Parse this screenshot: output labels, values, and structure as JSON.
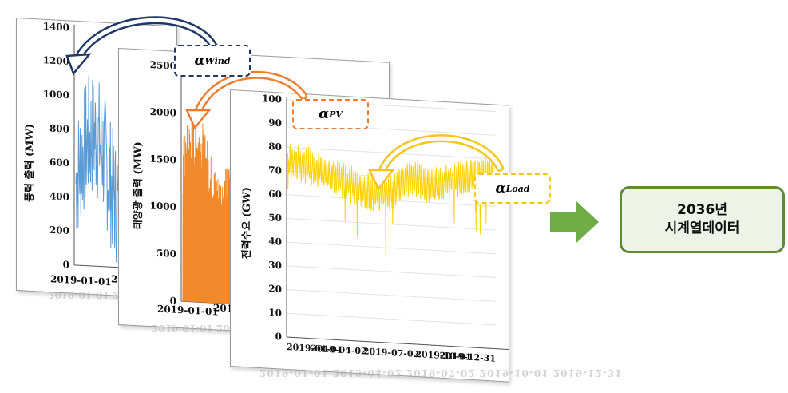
{
  "colors": {
    "wind": "#5b9bd5",
    "pv": "#f08a2c",
    "load": "#ffd200",
    "arrow_wind": "#1f3864",
    "arrow_pv": "#ed7d31",
    "arrow_load": "#f5c518",
    "result_border": "#5e8a36",
    "result_fill": "#eef3e8",
    "forward_arrow": "#70ad47"
  },
  "wind_panel": {
    "ylabel": "풍력 출력 (MW)",
    "yticks": [
      "0",
      "200",
      "400",
      "600",
      "800",
      "1000",
      "1200",
      "1400"
    ],
    "xtick_first": "2019-01-01",
    "xtick_second_partial": "20",
    "reflection": "2019-01-01   2019-01-0"
  },
  "pv_panel": {
    "ylabel": "태양광 출력 (MW)",
    "yticks": [
      "0",
      "500",
      "1000",
      "1500",
      "2000",
      "2500"
    ],
    "xtick_first": "2019-01-01",
    "xtick_second_partial": "201",
    "reflection": "2019-01-01   2019-1"
  },
  "load_panel": {
    "ylabel": "전력수요 (GW)",
    "yticks": [
      "0",
      "10",
      "20",
      "30",
      "40",
      "50",
      "60",
      "70",
      "80",
      "90",
      "100"
    ],
    "xticks": [
      "2019-01-01",
      "2019-04-02",
      "2019-07-02",
      "2019-10-01",
      "2019-12-31"
    ],
    "reflection": "2019-01-01   2019-04-02   2019-07-02   2019-10-01   2019-12-31"
  },
  "alpha": {
    "wind": {
      "symbol": "α",
      "sub": "Wind"
    },
    "pv": {
      "symbol": "α",
      "sub": "PV"
    },
    "load": {
      "symbol": "α",
      "sub": "Load"
    }
  },
  "result": {
    "line1": "2036년",
    "line2": "시계열데이터"
  }
}
